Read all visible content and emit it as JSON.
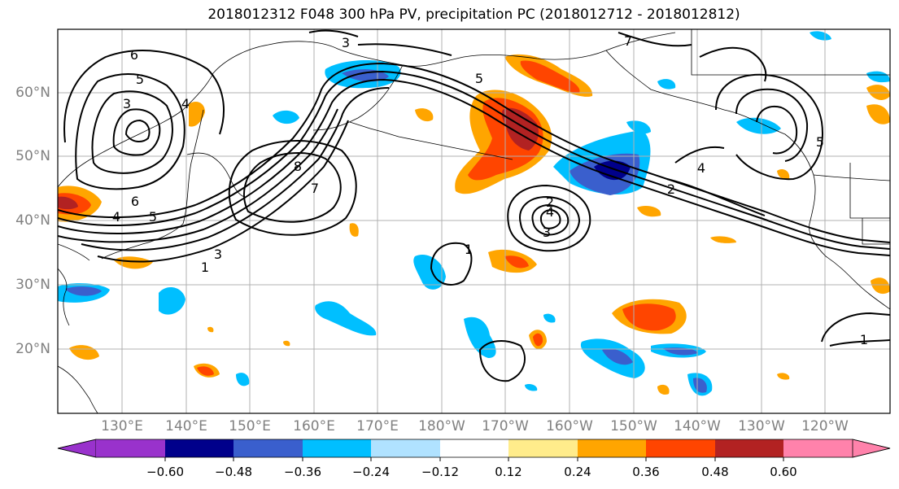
{
  "title": "2018012312 F048 300 hPa PV, precipitation PC (2018012712 - 2018012812)",
  "latitude_labels": [
    "60°N",
    "50°N",
    "40°N",
    "30°N",
    "20°N"
  ],
  "longitude_labels": [
    "130°E",
    "140°E",
    "150°E",
    "160°E",
    "170°E",
    "180°W",
    "170°W",
    "160°W",
    "150°W",
    "140°W",
    "130°W",
    "120°W"
  ],
  "contour_labels": [
    "6",
    "5",
    "3",
    "3",
    "5",
    "4",
    "4",
    "5",
    "3",
    "1",
    "6",
    "8",
    "7",
    "2",
    "4",
    "3",
    "1",
    "4",
    "2",
    "1",
    "5",
    "7"
  ],
  "colorbar": {
    "ticks": [
      "−0.60",
      "−0.48",
      "−0.36",
      "−0.24",
      "−0.12",
      "0.12",
      "0.24",
      "0.36",
      "0.48",
      "0.60"
    ],
    "colors": [
      "#9932cc",
      "#00008b",
      "#3a5fcd",
      "#00bfff",
      "#b0e2ff",
      "#ffffff",
      "#ffec8b",
      "#ffa500",
      "#ff4500",
      "#b22222",
      "#ff82ab"
    ]
  }
}
